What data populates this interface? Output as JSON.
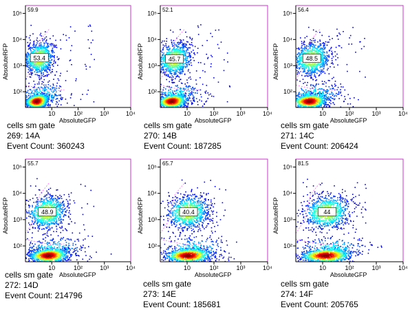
{
  "chart_data": [
    {
      "type": "scatter",
      "subtype": "flow-cytometry-density",
      "xlabel": "AbsoluteGFP",
      "ylabel": "AbsoluteRFP",
      "x_scale": "log",
      "y_scale": "log",
      "xlim": [
        1,
        10000
      ],
      "ylim": [
        25,
        200000
      ],
      "x_ticks": [
        "10",
        "10²",
        "10³",
        "10⁴"
      ],
      "y_ticks": [
        "10²",
        "10³",
        "10⁴",
        "10⁵"
      ],
      "gate_label": "cells sm gate",
      "sample": "269: 14A",
      "event_count_text": "Event Count: 360243",
      "corner_value": "59.9",
      "gate_value": "53.4",
      "populations": [
        {
          "name": "rfp_high",
          "center": [
            3,
            2000
          ]
        },
        {
          "name": "rfp_low",
          "center": [
            2.5,
            45
          ]
        }
      ]
    },
    {
      "type": "scatter",
      "subtype": "flow-cytometry-density",
      "xlabel": "AbsoluteGFP",
      "ylabel": "AbsoluteRFP",
      "x_scale": "log",
      "y_scale": "log",
      "xlim": [
        1,
        10000
      ],
      "ylim": [
        25,
        200000
      ],
      "x_ticks": [
        "10",
        "10²",
        "10³",
        "10⁴"
      ],
      "y_ticks": [
        "10²",
        "10³",
        "10⁴",
        "10⁵"
      ],
      "gate_label": "cells sm gate",
      "sample": "270: 14B",
      "event_count_text": "Event Count: 187285",
      "corner_value": "52.1",
      "gate_value": "45.7",
      "populations": [
        {
          "name": "rfp_high",
          "center": [
            3,
            1800
          ]
        },
        {
          "name": "rfp_low",
          "center": [
            2.5,
            45
          ]
        }
      ]
    },
    {
      "type": "scatter",
      "subtype": "flow-cytometry-density",
      "xlabel": "AbsoluteGFP",
      "ylabel": "AbsoluteRFP",
      "x_scale": "log",
      "y_scale": "log",
      "xlim": [
        1,
        10000
      ],
      "ylim": [
        25,
        200000
      ],
      "x_ticks": [
        "10",
        "10²",
        "10³",
        "10⁴"
      ],
      "y_ticks": [
        "10²",
        "10³",
        "10⁴",
        "10⁵"
      ],
      "gate_label": "cells sm gate",
      "sample": "271: 14C",
      "event_count_text": "Event Count: 206424",
      "corner_value": "56.4",
      "gate_value": "48.5",
      "populations": [
        {
          "name": "rfp_high",
          "center": [
            3.5,
            1900
          ]
        },
        {
          "name": "rfp_low",
          "center": [
            3,
            45
          ]
        }
      ]
    },
    {
      "type": "scatter",
      "subtype": "flow-cytometry-density",
      "xlabel": "AbsoluteGFP",
      "ylabel": "AbsoluteRFP",
      "x_scale": "log",
      "y_scale": "log",
      "xlim": [
        1,
        10000
      ],
      "ylim": [
        25,
        200000
      ],
      "x_ticks": [
        "10",
        "10²",
        "10³",
        "10⁴"
      ],
      "y_ticks": [
        "10²",
        "10³",
        "10⁴",
        "10⁵"
      ],
      "gate_label": "cells sm gate",
      "sample": "272: 14D",
      "event_count_text": "Event Count: 214796",
      "corner_value": "55.7",
      "gate_value": "48.9",
      "populations": [
        {
          "name": "rfp_high",
          "center": [
            6,
            2000
          ]
        },
        {
          "name": "rfp_low",
          "center": [
            7,
            45
          ]
        }
      ]
    },
    {
      "type": "scatter",
      "subtype": "flow-cytometry-density",
      "xlabel": "AbsoluteGFP",
      "ylabel": "AbsoluteRFP",
      "x_scale": "log",
      "y_scale": "log",
      "xlim": [
        1,
        10000
      ],
      "ylim": [
        25,
        200000
      ],
      "x_ticks": [
        "10",
        "10²",
        "10³",
        "10⁴"
      ],
      "y_ticks": [
        "10²",
        "10³",
        "10⁴",
        "10⁵"
      ],
      "gate_label": "cells sm gate",
      "sample": "273: 14E",
      "event_count_text": "Event Count: 185681",
      "corner_value": "65.7",
      "gate_value": "40.4",
      "populations": [
        {
          "name": "rfp_high",
          "center": [
            10,
            2000
          ]
        },
        {
          "name": "rfp_low",
          "center": [
            10,
            45
          ]
        }
      ]
    },
    {
      "type": "scatter",
      "subtype": "flow-cytometry-density",
      "xlabel": "AbsoluteGFP",
      "ylabel": "AbsoluteRFP",
      "x_scale": "log",
      "y_scale": "log",
      "xlim": [
        1,
        10000
      ],
      "ylim": [
        25,
        200000
      ],
      "x_ticks": [
        "10",
        "10²",
        "10³",
        "10⁴"
      ],
      "y_ticks": [
        "10²",
        "10³",
        "10⁴",
        "10⁵"
      ],
      "gate_label": "cells sm gate",
      "sample": "274: 14F",
      "event_count_text": "Event Count: 205765",
      "corner_value": "81.5",
      "gate_value": "44",
      "populations": [
        {
          "name": "rfp_high",
          "center": [
            13,
            2000
          ]
        },
        {
          "name": "rfp_low",
          "center": [
            12,
            45
          ]
        }
      ]
    }
  ],
  "colors": {
    "frame": "#cc33cc",
    "gate_line": "#ff66ff",
    "density_low": "#0000cc",
    "density_high": "#ee0000"
  }
}
